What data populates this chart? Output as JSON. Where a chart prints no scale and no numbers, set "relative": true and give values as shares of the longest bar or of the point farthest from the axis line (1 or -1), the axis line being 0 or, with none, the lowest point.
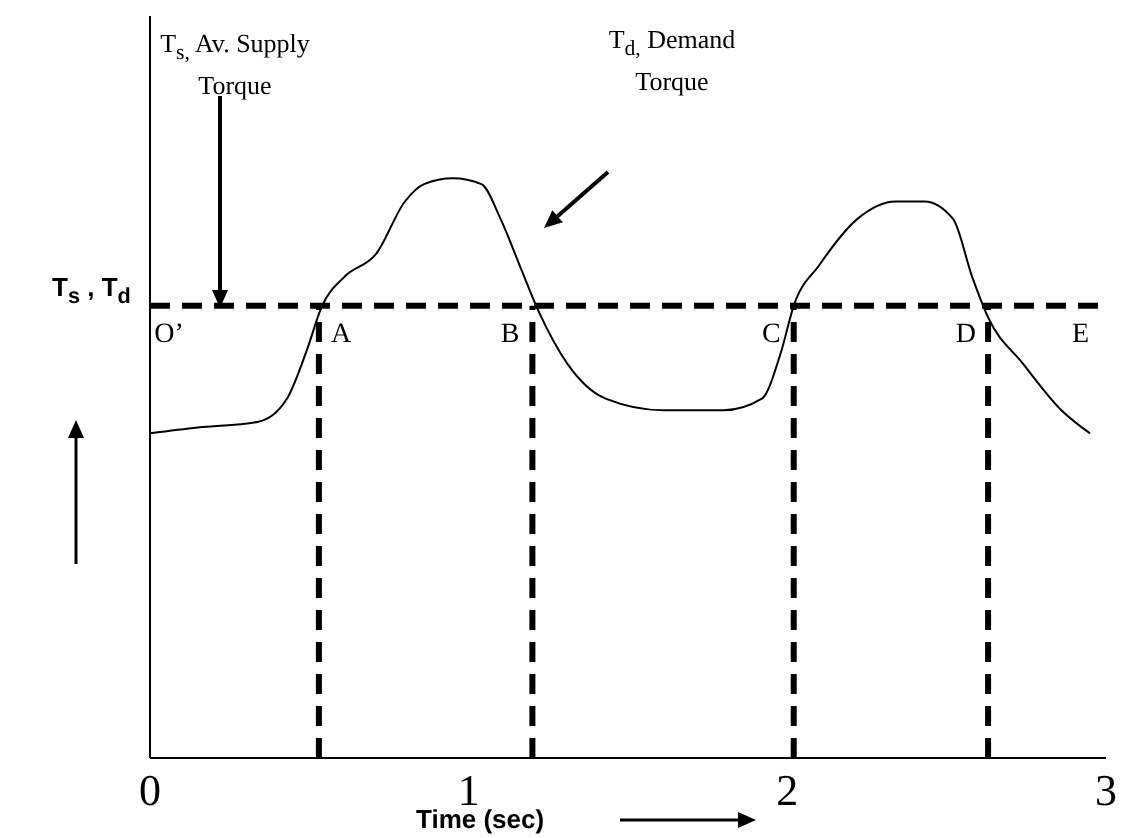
{
  "chart_data": {
    "type": "line",
    "relative": true,
    "xlabel": "Time (sec)",
    "ylabel": "T$_{s}$ , T$_{d}$",
    "x": [
      0,
      0.15,
      0.34,
      0.43,
      0.49,
      0.54,
      0.61,
      0.71,
      0.8,
      0.86,
      0.95,
      1.04,
      1.1,
      1.16,
      1.22,
      1.31,
      1.43,
      1.61,
      1.8,
      1.92,
      1.98,
      2.02,
      2.1,
      2.22,
      2.34,
      2.43,
      2.52,
      2.58,
      2.63,
      2.74,
      2.86,
      2.95
    ],
    "values": [
      0.56,
      0.57,
      0.58,
      0.62,
      0.7,
      0.78,
      0.83,
      0.87,
      0.96,
      0.99,
      1,
      0.99,
      0.93,
      0.85,
      0.77,
      0.68,
      0.62,
      0.6,
      0.6,
      0.62,
      0.7,
      0.78,
      0.85,
      0.93,
      0.96,
      0.96,
      0.93,
      0.83,
      0.76,
      0.68,
      0.6,
      0.56
    ],
    "color": "#000000",
    "xlim": [
      0,
      3
    ],
    "xticks": [
      0,
      1,
      2,
      3
    ],
    "ref_lines": [
      {
        "axis": "y",
        "value": 0.78,
        "color": "#000000",
        "line_style": "dashed"
      },
      {
        "axis": "x",
        "value": 0.53,
        "color": "#000000",
        "line_style": "dashed"
      },
      {
        "axis": "x",
        "value": 1.2,
        "color": "#000000",
        "line_style": "dashed"
      },
      {
        "axis": "x",
        "value": 2.02,
        "color": "#000000",
        "line_style": "dashed"
      },
      {
        "axis": "x",
        "value": 2.63,
        "color": "#000000",
        "line_style": "dashed"
      }
    ],
    "annotations": [
      "T$_{s,}$ Av. Supply Torque",
      "T$_{d,}$ Demand Torque",
      {
        "text": "O’",
        "x": 0.06,
        "y": 0.78
      },
      {
        "text": "A",
        "x": 0.6,
        "y": 0.78
      },
      {
        "text": "B",
        "x": 1.13,
        "y": 0.78
      },
      {
        "text": "C",
        "x": 1.95,
        "y": 0.78
      },
      {
        "text": "D",
        "x": 2.56,
        "y": 0.78
      },
      {
        "text": "E",
        "x": 2.92,
        "y": 0.78
      }
    ]
  }
}
